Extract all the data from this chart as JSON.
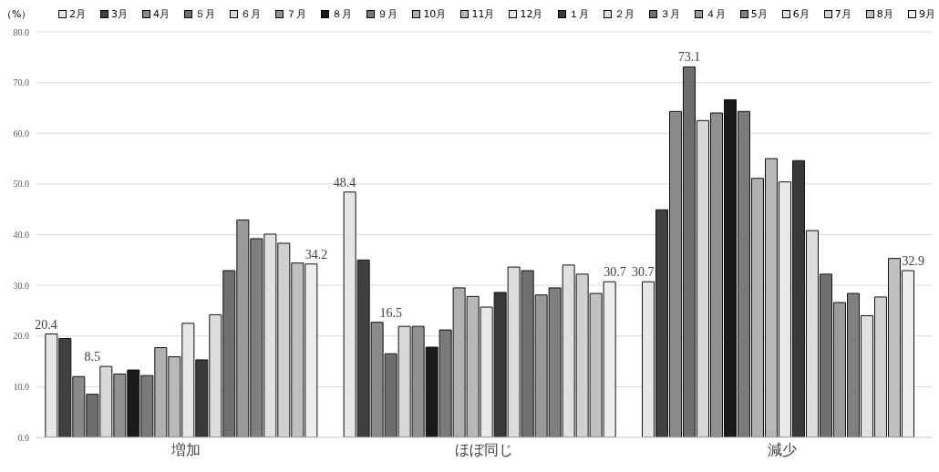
{
  "chart_data": {
    "type": "bar",
    "ylabel": "（%）",
    "categories": [
      "増加",
      "ほぼ同じ",
      "減少"
    ],
    "series": [
      {
        "name": "2月",
        "color": "#e6e6e6",
        "values": [
          20.4,
          48.4,
          30.7
        ],
        "value_labels": [
          "20.4",
          "48.4",
          "30.7"
        ]
      },
      {
        "name": "3月",
        "color": "#404040",
        "values": [
          19.5,
          35.0,
          44.9
        ]
      },
      {
        "name": "4月",
        "color": "#8a8a8a",
        "values": [
          12.0,
          22.7,
          64.3
        ]
      },
      {
        "name": "５月",
        "color": "#6e6e6e",
        "values": [
          8.5,
          16.5,
          73.1
        ],
        "value_labels": [
          "8.5",
          "16.5",
          "73.1"
        ]
      },
      {
        "name": "６月",
        "color": "#d8d8d8",
        "values": [
          14.0,
          21.9,
          62.5
        ]
      },
      {
        "name": "７月",
        "color": "#909090",
        "values": [
          12.5,
          21.9,
          64.0
        ]
      },
      {
        "name": "８月",
        "color": "#1a1a1a",
        "values": [
          13.3,
          17.8,
          66.6
        ]
      },
      {
        "name": "９月",
        "color": "#7a7a7a",
        "values": [
          12.2,
          21.2,
          64.3
        ]
      },
      {
        "name": "10月",
        "color": "#b0b0b0",
        "values": [
          17.7,
          29.5,
          51.1
        ]
      },
      {
        "name": "11月",
        "color": "#b8b8b8",
        "values": [
          15.9,
          27.8,
          55.0
        ]
      },
      {
        "name": "12月",
        "color": "#e8e8e8",
        "values": [
          22.5,
          25.7,
          50.4
        ]
      },
      {
        "name": "１月",
        "color": "#3a3a3a",
        "values": [
          15.3,
          28.6,
          54.6
        ]
      },
      {
        "name": "２月",
        "color": "#dcdcdc",
        "values": [
          24.2,
          33.6,
          40.8
        ]
      },
      {
        "name": "３月",
        "color": "#707070",
        "values": [
          32.9,
          32.9,
          32.2
        ]
      },
      {
        "name": "４月",
        "color": "#9a9a9a",
        "values": [
          42.9,
          28.1,
          26.6
        ]
      },
      {
        "name": "5月",
        "color": "#808080",
        "values": [
          39.2,
          29.5,
          28.4
        ]
      },
      {
        "name": "6月",
        "color": "#e0e0e0",
        "values": [
          40.1,
          34.0,
          24.0
        ]
      },
      {
        "name": "7月",
        "color": "#d0d0d0",
        "values": [
          38.3,
          32.2,
          27.7
        ]
      },
      {
        "name": "8月",
        "color": "#c0c0c0",
        "values": [
          34.4,
          28.4,
          35.3
        ]
      },
      {
        "name": "9月",
        "color": "#eeeeee",
        "values": [
          34.2,
          30.7,
          32.9
        ],
        "value_labels": [
          "34.2",
          "30.7",
          "32.9"
        ]
      }
    ],
    "ylim": [
      0,
      80
    ],
    "yticks": [
      {
        "value": 0,
        "label": "0.0"
      },
      {
        "value": 10,
        "label": "10.0"
      },
      {
        "value": 20,
        "label": "20.0"
      },
      {
        "value": 30,
        "label": "30.0"
      },
      {
        "value": 40,
        "label": "40.0"
      },
      {
        "value": 50,
        "label": "50.0"
      },
      {
        "value": 60,
        "label": "60.0"
      },
      {
        "value": 70,
        "label": "70.0"
      },
      {
        "value": 80,
        "label": "80.0"
      }
    ],
    "grid": "y",
    "legend": "top"
  }
}
